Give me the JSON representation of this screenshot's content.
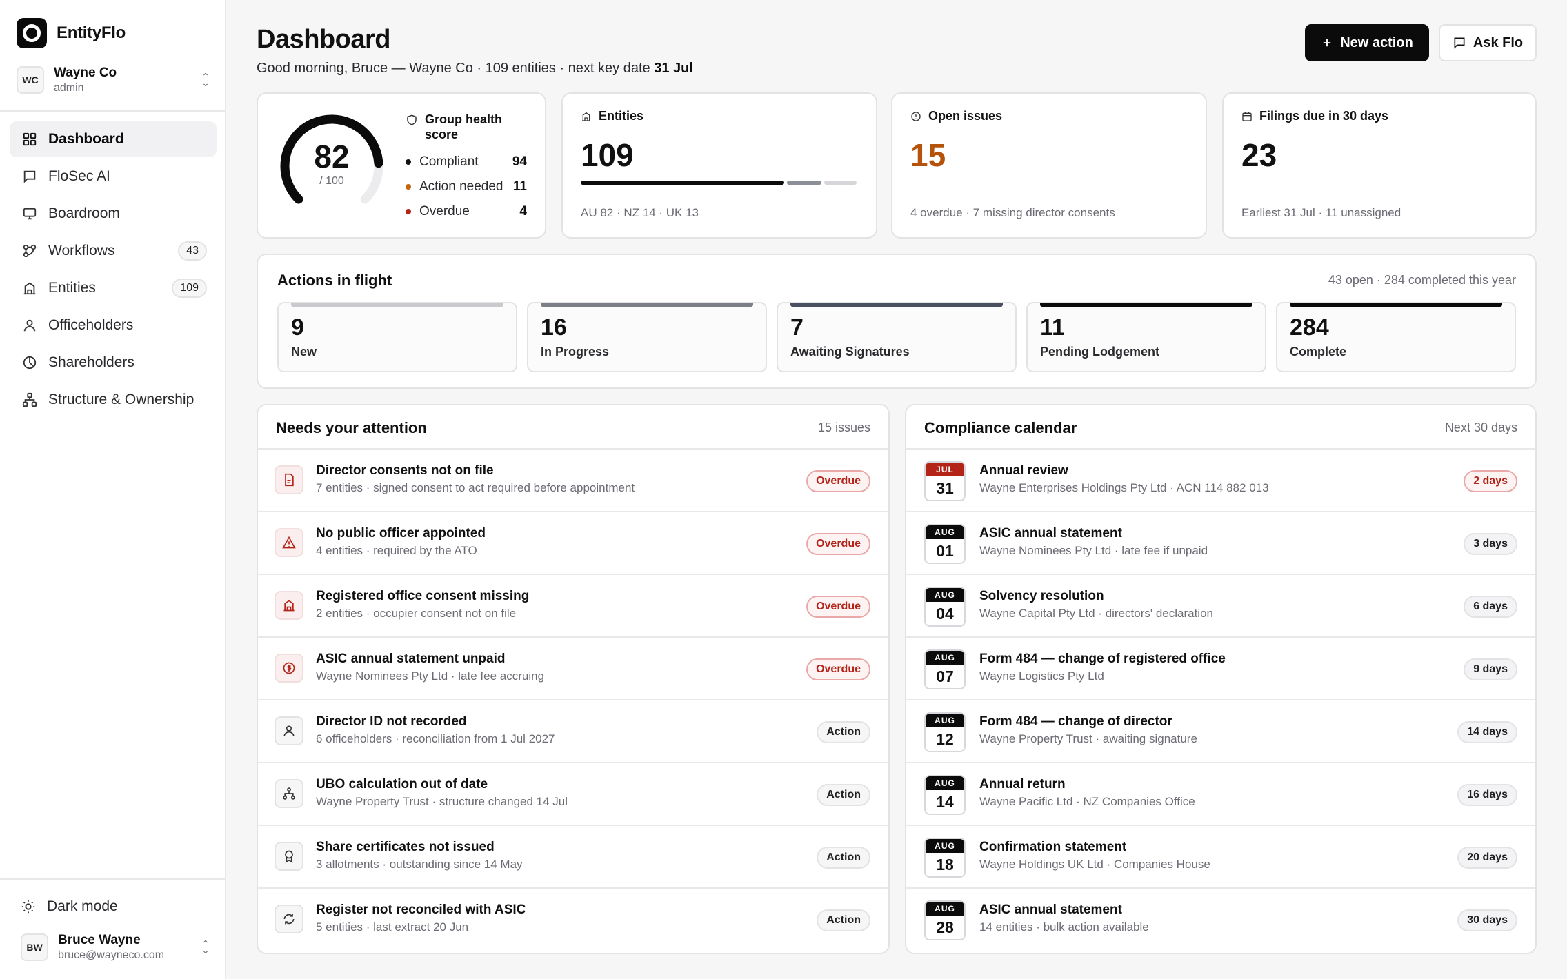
{
  "app": {
    "brand": "EntityFlo",
    "org": {
      "initials": "WC",
      "name": "Wayne Co",
      "role": "admin"
    },
    "user": {
      "initials": "BW",
      "name": "Bruce Wayne",
      "email": "bruce@wayneco.com"
    },
    "dark_mode_label": "Dark mode"
  },
  "sidebar": {
    "items": [
      {
        "label": "Dashboard",
        "icon": "grid-icon",
        "active": true,
        "count": ""
      },
      {
        "label": "FloSec AI",
        "icon": "chat-icon",
        "count": ""
      },
      {
        "label": "Boardroom",
        "icon": "monitor-icon",
        "count": ""
      },
      {
        "label": "Workflows",
        "icon": "workflow-icon",
        "count": "43"
      },
      {
        "label": "Entities",
        "icon": "building-icon",
        "count": "109"
      },
      {
        "label": "Officeholders",
        "icon": "person-icon",
        "count": ""
      },
      {
        "label": "Shareholders",
        "icon": "pie-icon",
        "count": ""
      },
      {
        "label": "Structure & Ownership",
        "icon": "hierarchy-icon",
        "count": ""
      }
    ]
  },
  "header": {
    "title": "Dashboard",
    "subtitle_prefix": "Good morning, Bruce — Wayne Co · 109 entities · next key date ",
    "subtitle_date": "31 Jul",
    "new_action_label": "New action",
    "ask_flo_label": "Ask Flo"
  },
  "health": {
    "score": "82",
    "denominator": "/ 100",
    "score_fraction": 0.82,
    "title": "Group health score",
    "rows": [
      {
        "label": "Compliant",
        "value": "94",
        "color": "#111111"
      },
      {
        "label": "Action needed",
        "value": "11",
        "color": "#c2660f"
      },
      {
        "label": "Overdue",
        "value": "4",
        "color": "#b42318"
      }
    ]
  },
  "stats": {
    "entities": {
      "label": "Entities",
      "value": "109",
      "foot": "AU 82 · NZ 14 · UK 13",
      "split": [
        82,
        14,
        13
      ]
    },
    "issues": {
      "label": "Open issues",
      "value": "15",
      "foot": "4 overdue · 7 missing director consents",
      "color": "#b45309"
    },
    "filings": {
      "label": "Filings due in 30 days",
      "value": "23",
      "foot": "Earliest 31 Jul · 11 unassigned"
    }
  },
  "actions_in_flight": {
    "title": "Actions in flight",
    "meta": "43 open · 284 completed this year",
    "stages": [
      {
        "value": "9",
        "label": "New",
        "color": "#c9c9ce"
      },
      {
        "value": "16",
        "label": "In Progress",
        "color": "#7a7f88"
      },
      {
        "value": "7",
        "label": "Awaiting Signatures",
        "color": "#4a5060"
      },
      {
        "value": "11",
        "label": "Pending Lodgement",
        "color": "#0b0b0c"
      },
      {
        "value": "284",
        "label": "Complete",
        "color": "#0b0b0c"
      }
    ]
  },
  "attention": {
    "title": "Needs your attention",
    "meta": "15 issues",
    "items": [
      {
        "title": "Director consents not on file",
        "sub": "7 entities · signed consent to act required before appointment",
        "status": "Overdue",
        "icon": "document-icon"
      },
      {
        "title": "No public officer appointed",
        "sub": "4 entities · required by the ATO",
        "status": "Overdue",
        "icon": "warning-icon"
      },
      {
        "title": "Registered office consent missing",
        "sub": "2 entities · occupier consent not on file",
        "status": "Overdue",
        "icon": "building-icon"
      },
      {
        "title": "ASIC annual statement unpaid",
        "sub": "Wayne Nominees Pty Ltd · late fee accruing",
        "status": "Overdue",
        "icon": "dollar-icon"
      },
      {
        "title": "Director ID not recorded",
        "sub": "6 officeholders · reconciliation from 1 Jul 2027",
        "status": "Action",
        "icon": "person-icon"
      },
      {
        "title": "UBO calculation out of date",
        "sub": "Wayne Property Trust · structure changed 14 Jul",
        "status": "Action",
        "icon": "hierarchy-icon"
      },
      {
        "title": "Share certificates not issued",
        "sub": "3 allotments · outstanding since 14 May",
        "status": "Action",
        "icon": "award-icon"
      },
      {
        "title": "Register not reconciled with ASIC",
        "sub": "5 entities · last extract 20 Jun",
        "status": "Action",
        "icon": "refresh-icon"
      }
    ]
  },
  "calendar": {
    "title": "Compliance calendar",
    "meta": "Next 30 days",
    "items": [
      {
        "month": "JUL",
        "day": "31",
        "title": "Annual review",
        "sub": "Wayne Enterprises Holdings Pty Ltd · ACN 114 882 013",
        "due": "2 days",
        "urgent": true
      },
      {
        "month": "AUG",
        "day": "01",
        "title": "ASIC annual statement",
        "sub": "Wayne Nominees Pty Ltd · late fee if unpaid",
        "due": "3 days"
      },
      {
        "month": "AUG",
        "day": "04",
        "title": "Solvency resolution",
        "sub": "Wayne Capital Pty Ltd · directors' declaration",
        "due": "6 days"
      },
      {
        "month": "AUG",
        "day": "07",
        "title": "Form 484 — change of registered office",
        "sub": "Wayne Logistics Pty Ltd",
        "due": "9 days"
      },
      {
        "month": "AUG",
        "day": "12",
        "title": "Form 484 — change of director",
        "sub": "Wayne Property Trust · awaiting signature",
        "due": "14 days"
      },
      {
        "month": "AUG",
        "day": "14",
        "title": "Annual return",
        "sub": "Wayne Pacific Ltd · NZ Companies Office",
        "due": "16 days"
      },
      {
        "month": "AUG",
        "day": "18",
        "title": "Confirmation statement",
        "sub": "Wayne Holdings UK Ltd · Companies House",
        "due": "20 days"
      },
      {
        "month": "AUG",
        "day": "28",
        "title": "ASIC annual statement",
        "sub": "14 entities · bulk action available",
        "due": "30 days"
      }
    ]
  }
}
